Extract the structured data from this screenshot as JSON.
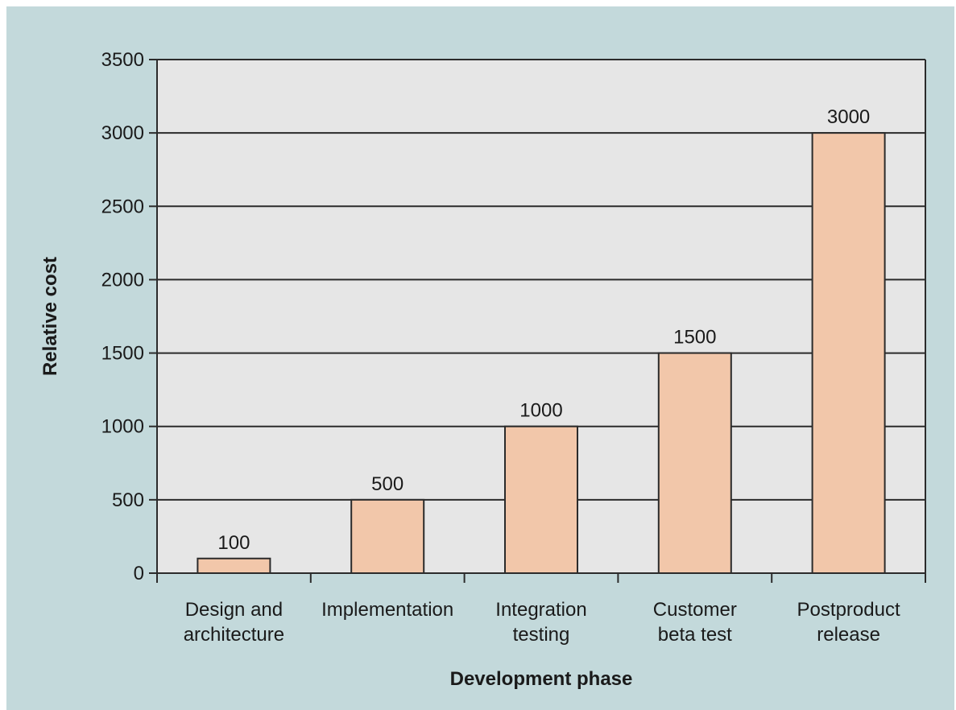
{
  "chart_data": {
    "type": "bar",
    "categories": [
      [
        "Design and",
        "architecture"
      ],
      [
        "Implementation"
      ],
      [
        "Integration",
        "testing"
      ],
      [
        "Customer",
        "beta test"
      ],
      [
        "Postproduct",
        "release"
      ]
    ],
    "values": [
      100,
      500,
      1000,
      1500,
      3000
    ],
    "data_labels": [
      "100",
      "500",
      "1000",
      "1500",
      "3000"
    ],
    "title": "",
    "xlabel": "Development phase",
    "ylabel": "Relative cost",
    "ylim": [
      0,
      3500
    ],
    "yticks": [
      0,
      500,
      1000,
      1500,
      2000,
      2500,
      3000,
      3500
    ],
    "grid": true,
    "legend": "none",
    "colors": {
      "background": "#c3d9db",
      "plot_area": "#e6e6e6",
      "bar_fill": "#f2c7aa",
      "bar_stroke": "#2b2b2b",
      "grid": "#2b2b2b",
      "text": "#1a1a1a"
    }
  }
}
